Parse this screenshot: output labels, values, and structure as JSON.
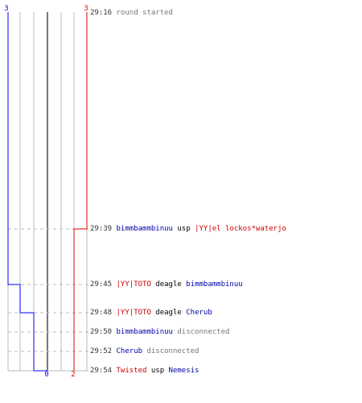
{
  "colors": {
    "team_ct": "#0000ff",
    "team_t": "#dd0000",
    "name_ct": "#0000aa",
    "name_t": "#cc0000",
    "grid": "#bbbbbb",
    "dashed": "#bbbbbb",
    "center_line": "#777777",
    "time_text": "#333333",
    "system_text": "#777777"
  },
  "scores": {
    "ct_start": "3",
    "t_start": "3",
    "ct_end": "0",
    "t_end": "2"
  },
  "events": [
    {
      "time": "29:16",
      "parts": [
        {
          "text": "round started",
          "style": "msg-gray"
        }
      ]
    },
    {
      "time": "29:39",
      "parts": [
        {
          "text": "bimmbammbinuu",
          "style": "blue"
        },
        {
          "text": " usp ",
          "style": "black"
        },
        {
          "text": "|YY|el lockos*waterjo",
          "style": "red"
        }
      ]
    },
    {
      "time": "29:45",
      "parts": [
        {
          "text": "|YY|TOTO",
          "style": "red"
        },
        {
          "text": " deagle ",
          "style": "black"
        },
        {
          "text": "bimmbammbinuu",
          "style": "blue"
        }
      ]
    },
    {
      "time": "29:48",
      "parts": [
        {
          "text": "|YY|TOTO",
          "style": "red"
        },
        {
          "text": " deagle ",
          "style": "black"
        },
        {
          "text": "Cherub",
          "style": "blue"
        }
      ]
    },
    {
      "time": "29:50",
      "parts": [
        {
          "text": "bimmbammbinuu",
          "style": "blue"
        },
        {
          "text": " disconnected",
          "style": "msg-gray"
        }
      ]
    },
    {
      "time": "29:52",
      "parts": [
        {
          "text": "Cherub",
          "style": "blue"
        },
        {
          "text": " disconnected",
          "style": "msg-gray"
        }
      ]
    },
    {
      "time": "29:54",
      "parts": [
        {
          "text": "Twisted",
          "style": "red"
        },
        {
          "text": " usp ",
          "style": "black"
        },
        {
          "text": "Nemesis",
          "style": "blue"
        }
      ]
    }
  ],
  "alive_counts": {
    "ct": [
      3,
      3,
      2,
      1,
      1,
      1,
      0
    ],
    "t": [
      3,
      2,
      2,
      2,
      2,
      2,
      2
    ]
  }
}
